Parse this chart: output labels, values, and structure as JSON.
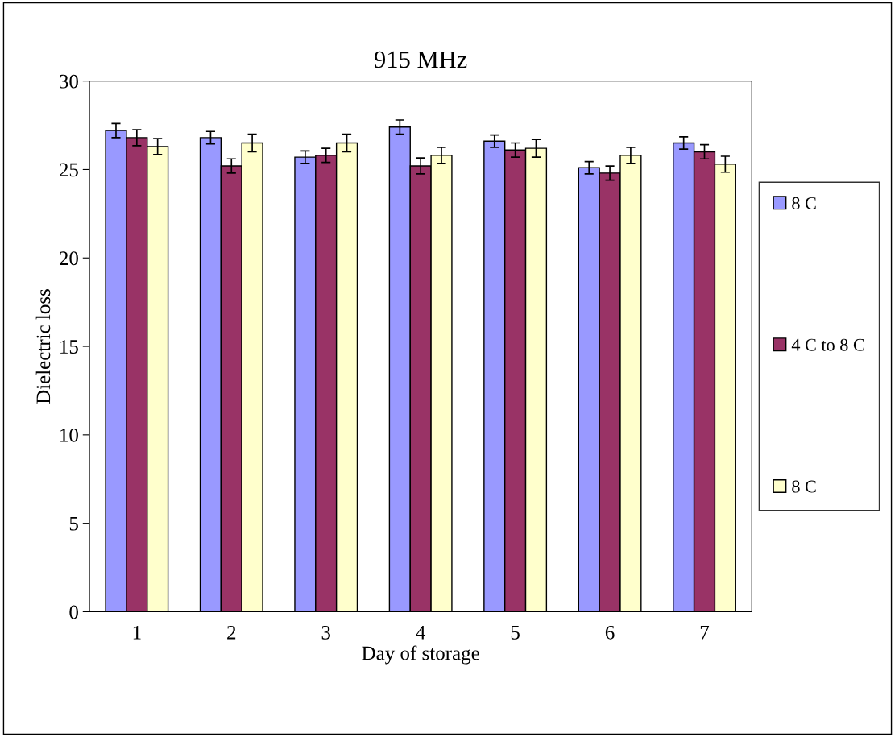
{
  "chart_data": {
    "type": "bar",
    "title": "915 MHz",
    "xlabel": "Day of storage",
    "ylabel": "Dielectric loss",
    "categories": [
      "1",
      "2",
      "3",
      "4",
      "5",
      "6",
      "7"
    ],
    "series": [
      {
        "name": "8 C",
        "color": "#9999ff",
        "values": [
          27.2,
          26.8,
          25.7,
          27.4,
          26.6,
          25.1,
          26.5
        ],
        "errors": [
          0.4,
          0.35,
          0.35,
          0.4,
          0.35,
          0.35,
          0.35
        ]
      },
      {
        "name": "4 C to 8 C",
        "color": "#993366",
        "values": [
          26.8,
          25.2,
          25.8,
          25.2,
          26.1,
          24.8,
          26.0
        ],
        "errors": [
          0.45,
          0.4,
          0.4,
          0.45,
          0.4,
          0.4,
          0.4
        ]
      },
      {
        "name": "8 C",
        "color": "#ffffcc",
        "values": [
          26.3,
          26.5,
          26.5,
          25.8,
          26.2,
          25.8,
          25.3
        ],
        "errors": [
          0.45,
          0.5,
          0.5,
          0.45,
          0.5,
          0.45,
          0.45
        ]
      }
    ],
    "ylim": [
      0,
      30
    ],
    "yticks": [
      0,
      5,
      10,
      15,
      20,
      25,
      30
    ],
    "grid": false,
    "legend": "right"
  }
}
